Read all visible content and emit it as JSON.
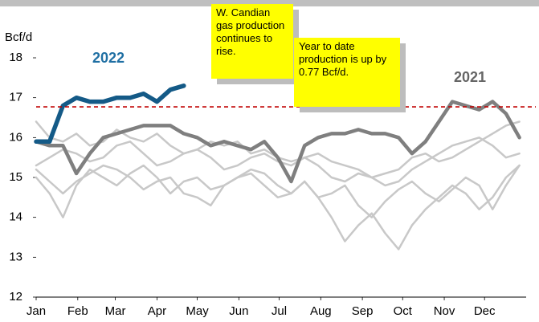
{
  "chart_data": {
    "type": "line",
    "ylabel": "Bcf/d",
    "x": [
      0,
      10,
      20,
      30,
      40,
      50,
      60,
      70,
      80,
      90,
      100,
      110,
      120,
      130,
      140,
      150,
      160,
      170,
      180,
      190,
      200,
      210,
      220,
      230,
      240,
      250,
      260,
      270,
      280,
      290,
      300,
      310,
      320,
      330,
      340,
      350,
      360
    ],
    "xlim": [
      0,
      365
    ],
    "xticks": [
      {
        "value": 0,
        "label": "Jan"
      },
      {
        "value": 31,
        "label": "Feb"
      },
      {
        "value": 59,
        "label": "Mar"
      },
      {
        "value": 90,
        "label": "Apr"
      },
      {
        "value": 120,
        "label": "May"
      },
      {
        "value": 151,
        "label": "Jun"
      },
      {
        "value": 181,
        "label": "Jul"
      },
      {
        "value": 212,
        "label": "Aug"
      },
      {
        "value": 243,
        "label": "Sep"
      },
      {
        "value": 273,
        "label": "Oct"
      },
      {
        "value": 304,
        "label": "Nov"
      },
      {
        "value": 334,
        "label": "Dec"
      }
    ],
    "ylim": [
      12,
      18
    ],
    "yticks": [
      12,
      13,
      14,
      15,
      16,
      17,
      18
    ],
    "reference_line": {
      "value": 16.77,
      "color": "#c00000"
    },
    "series": [
      {
        "color": "#c8c8c8",
        "values": [
          16.4,
          16.0,
          15.9,
          16.1,
          15.8,
          15.9,
          16.2,
          16.0,
          15.9,
          16.1,
          15.8,
          15.6,
          15.7,
          15.9,
          15.8,
          15.9,
          15.6,
          15.7,
          15.5,
          15.4,
          15.5,
          15.6,
          15.4,
          15.3,
          15.2,
          15.0,
          15.1,
          15.2,
          15.5,
          15.6,
          15.4,
          15.5,
          15.7,
          15.9,
          16.1,
          16.3,
          16.4
        ]
      },
      {
        "color": "#c8c8c8",
        "values": [
          15.0,
          14.6,
          14.0,
          14.8,
          15.2,
          15.0,
          14.8,
          15.1,
          15.3,
          15.0,
          14.6,
          14.9,
          15.0,
          14.7,
          14.8,
          15.0,
          15.1,
          14.8,
          14.5,
          14.6,
          14.9,
          14.5,
          14.0,
          13.4,
          13.8,
          14.1,
          13.6,
          13.2,
          13.8,
          14.2,
          14.5,
          14.8,
          14.6,
          14.2,
          14.5,
          15.0,
          15.3
        ]
      },
      {
        "color": "#c8c8c8",
        "values": [
          15.3,
          15.5,
          15.7,
          15.6,
          15.4,
          15.5,
          15.8,
          15.9,
          15.6,
          15.3,
          15.4,
          15.6,
          15.7,
          15.5,
          15.2,
          15.3,
          15.5,
          15.6,
          15.4,
          15.3,
          15.5,
          15.3,
          15.0,
          14.9,
          15.1,
          15.0,
          14.8,
          14.9,
          15.2,
          15.4,
          15.6,
          15.8,
          15.9,
          16.0,
          15.8,
          15.5,
          15.6
        ]
      },
      {
        "color": "#c8c8c8",
        "values": [
          15.2,
          14.9,
          14.6,
          14.9,
          15.1,
          15.3,
          15.2,
          15.0,
          14.7,
          14.9,
          15.0,
          14.6,
          14.5,
          14.3,
          14.8,
          15.0,
          15.2,
          15.1,
          14.8,
          14.6,
          14.9,
          14.5,
          14.6,
          14.8,
          14.3,
          14.0,
          14.4,
          14.7,
          14.9,
          14.6,
          14.4,
          14.7,
          15.0,
          14.8,
          14.2,
          14.8,
          15.3
        ]
      },
      {
        "name": "2021",
        "color": "#7f7f7f",
        "values": [
          15.9,
          15.8,
          15.8,
          15.1,
          15.6,
          16.0,
          16.1,
          16.2,
          16.3,
          16.3,
          16.3,
          16.1,
          16.0,
          15.8,
          15.9,
          15.8,
          15.7,
          15.9,
          15.5,
          14.9,
          15.8,
          16.0,
          16.1,
          16.1,
          16.2,
          16.1,
          16.1,
          16.0,
          15.6,
          15.9,
          16.4,
          16.9,
          16.8,
          16.7,
          16.9,
          16.6,
          16.0
        ]
      },
      {
        "name": "2022",
        "color": "#145a87",
        "values": [
          15.9,
          15.9,
          16.8,
          17.0,
          16.9,
          16.9,
          17.0,
          17.0,
          17.1,
          16.9,
          17.2,
          17.3,
          null,
          null,
          null,
          null,
          null,
          null,
          null,
          null,
          null,
          null,
          null,
          null,
          null,
          null,
          null,
          null,
          null,
          null,
          null,
          null,
          null,
          null,
          null,
          null,
          null
        ]
      }
    ],
    "annotations": [
      {
        "text": "W. Candian gas production continues to rise."
      },
      {
        "text": "Year to date production is up by 0.77 Bcf/d."
      }
    ]
  }
}
